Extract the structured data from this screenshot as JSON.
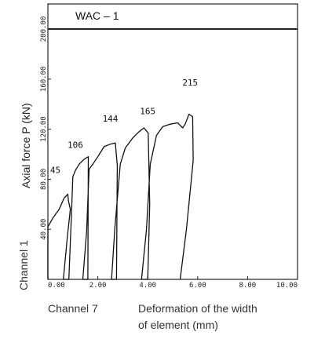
{
  "chart_data": {
    "type": "line",
    "title": "WAC – 1",
    "ylabel": "Axial force  P (kN)",
    "xlabel_line1": "Deformation of the width",
    "xlabel_line2": "of element (mm)",
    "y_side_label": "Channel 1",
    "x_side_label": "Channel 7",
    "xlim": [
      0,
      10
    ],
    "ylim": [
      0,
      200
    ],
    "x_ticks": [
      {
        "value": 0,
        "label": "0.00"
      },
      {
        "value": 2,
        "label": "2.00"
      },
      {
        "value": 4,
        "label": "4.00"
      },
      {
        "value": 6,
        "label": "6.00"
      },
      {
        "value": 8,
        "label": "8.00"
      },
      {
        "value": 10,
        "label": "10.00"
      }
    ],
    "y_ticks": [
      {
        "value": 40,
        "label": "40.00"
      },
      {
        "value": 80,
        "label": "80.00"
      },
      {
        "value": 120,
        "label": "120.00"
      },
      {
        "value": 160,
        "label": "160.00"
      },
      {
        "value": 200,
        "label": "200.00"
      }
    ],
    "grid": false,
    "annotations": [
      {
        "text": "45",
        "x": 0.3,
        "y": 85
      },
      {
        "text": "106",
        "x": 1.1,
        "y": 105
      },
      {
        "text": "144",
        "x": 2.5,
        "y": 126
      },
      {
        "text": "165",
        "x": 4.0,
        "y": 132
      },
      {
        "text": "215",
        "x": 5.7,
        "y": 155
      }
    ],
    "series": [
      {
        "values": [
          [
            0.0,
            0.0
          ],
          [
            0.0,
            42.0
          ],
          [
            0.2,
            49.0
          ],
          [
            0.45,
            56.0
          ],
          [
            0.65,
            65.0
          ],
          [
            0.8,
            68.0
          ],
          [
            0.82,
            63.0
          ],
          [
            0.9,
            56.0
          ],
          [
            0.78,
            34.0
          ],
          [
            0.62,
            0.0
          ],
          [
            0.84,
            0.0
          ],
          [
            0.94,
            50.0
          ],
          [
            1.0,
            82.0
          ],
          [
            1.1,
            87.0
          ],
          [
            1.25,
            92.0
          ],
          [
            1.45,
            96.0
          ],
          [
            1.62,
            98.0
          ],
          [
            1.6,
            0.0
          ],
          [
            1.4,
            0.0
          ],
          [
            1.55,
            38.0
          ],
          [
            1.65,
            88.0
          ],
          [
            1.8,
            92.0
          ],
          [
            2.0,
            98.0
          ],
          [
            2.25,
            106.0
          ],
          [
            2.5,
            108.0
          ],
          [
            2.7,
            109.0
          ],
          [
            2.78,
            91.0
          ],
          [
            2.75,
            0.0
          ],
          [
            2.55,
            0.0
          ],
          [
            2.68,
            40.0
          ],
          [
            2.9,
            92.0
          ],
          [
            3.1,
            105.0
          ],
          [
            3.4,
            113.0
          ],
          [
            3.65,
            118.0
          ],
          [
            3.85,
            121.0
          ],
          [
            4.02,
            117.0
          ],
          [
            4.08,
            60.0
          ],
          [
            4.0,
            0.0
          ],
          [
            3.75,
            0.0
          ],
          [
            3.95,
            40.0
          ],
          [
            4.1,
            92.0
          ],
          [
            4.35,
            115.0
          ],
          [
            4.6,
            122.0
          ],
          [
            4.9,
            124.0
          ],
          [
            5.2,
            125.0
          ],
          [
            5.4,
            121.0
          ],
          [
            5.5,
            124.0
          ],
          [
            5.65,
            132.0
          ],
          [
            5.8,
            130.0
          ],
          [
            5.82,
            95.0
          ],
          [
            5.55,
            40.0
          ],
          [
            5.3,
            0.0
          ]
        ]
      }
    ]
  }
}
